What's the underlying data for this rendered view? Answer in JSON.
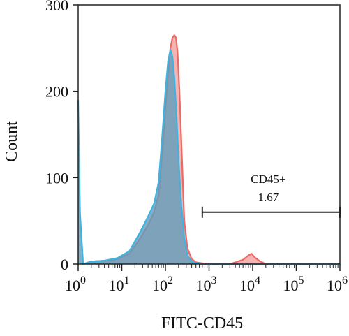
{
  "chart_data": {
    "type": "area",
    "title": "",
    "xlabel": "FITC-CD45",
    "ylabel": "Count",
    "xscale": "log",
    "xlim": [
      1,
      1000000
    ],
    "ylim": [
      0,
      300
    ],
    "grid": false,
    "x_ticks": [
      {
        "base": "10",
        "exp": "0"
      },
      {
        "base": "10",
        "exp": "1"
      },
      {
        "base": "10",
        "exp": "2"
      },
      {
        "base": "10",
        "exp": "3"
      },
      {
        "base": "10",
        "exp": "4"
      },
      {
        "base": "10",
        "exp": "5"
      },
      {
        "base": "10",
        "exp": "6"
      }
    ],
    "y_ticks": [
      "0",
      "100",
      "200",
      "300"
    ],
    "gate": {
      "label": "CD45+",
      "value": "1.67",
      "x_range": [
        700,
        1000000
      ],
      "y": 60
    },
    "series": [
      {
        "color": "#ea6a66",
        "fill": "#f29a97",
        "x": [
          1.3,
          2,
          4,
          8,
          15,
          25,
          40,
          55,
          70,
          85,
          100,
          115,
          130,
          145,
          160,
          175,
          190,
          210,
          240,
          270,
          320,
          400,
          500,
          700,
          1000,
          3000,
          6000,
          8000,
          9500,
          11000,
          14000,
          20000,
          100000,
          1000000
        ],
        "y": [
          0,
          3,
          4,
          6,
          12,
          28,
          45,
          60,
          80,
          130,
          180,
          220,
          250,
          262,
          265,
          262,
          245,
          200,
          120,
          50,
          18,
          6,
          2,
          1,
          0,
          0,
          5,
          10,
          12,
          8,
          4,
          0,
          0,
          0
        ]
      },
      {
        "color": "#3fb3e0",
        "fill": "#5f9dbd",
        "x": [
          1,
          1.1,
          1.3,
          2,
          4,
          8,
          15,
          25,
          40,
          55,
          70,
          85,
          100,
          115,
          130,
          145,
          160,
          180,
          200,
          230,
          270,
          320,
          400,
          500,
          700,
          1000,
          10000,
          100000,
          1000000
        ],
        "y": [
          190,
          60,
          0,
          3,
          4,
          7,
          15,
          35,
          55,
          70,
          95,
          150,
          200,
          235,
          248,
          240,
          215,
          170,
          120,
          70,
          30,
          10,
          3,
          1,
          0,
          0,
          0,
          0,
          0
        ]
      }
    ]
  }
}
